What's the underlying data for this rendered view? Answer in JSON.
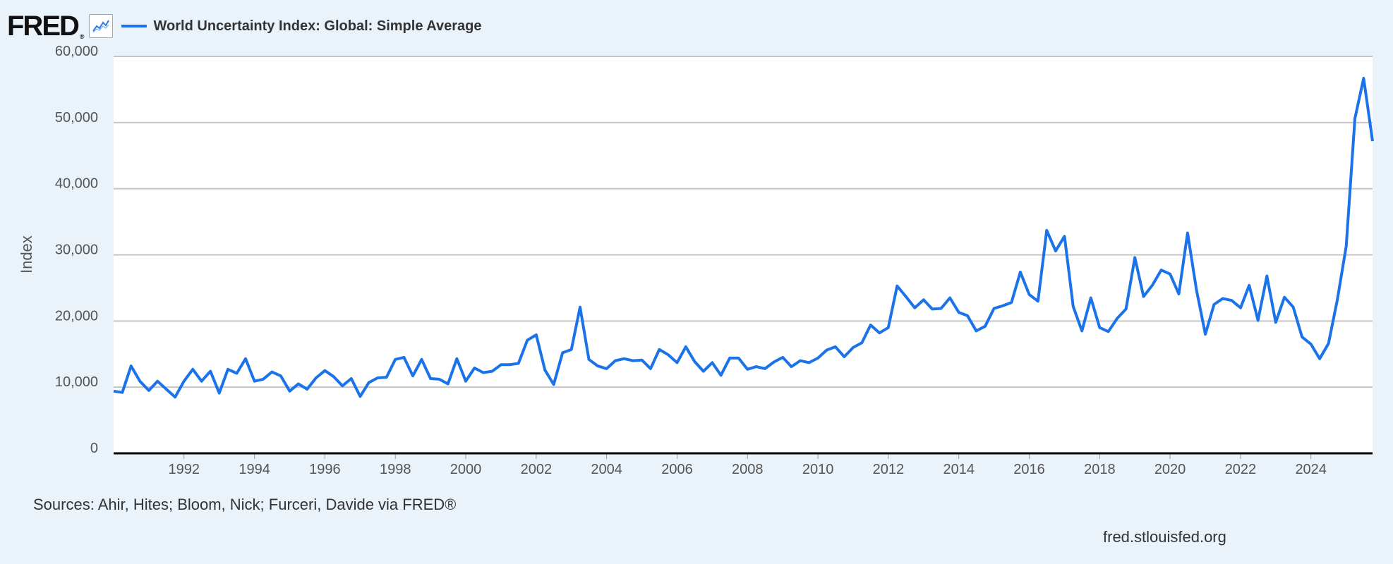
{
  "header": {
    "logo_text": "FRED",
    "logo_reg": "®",
    "icon": "line-chart-icon"
  },
  "chart_data": {
    "type": "line",
    "title": "",
    "legend": [
      "World Uncertainty Index: Global: Simple Average"
    ],
    "legend_placement": "top-left",
    "xlabel": "",
    "ylabel": "Index",
    "ylim": [
      0,
      60000
    ],
    "yticks": [
      0,
      10000,
      20000,
      30000,
      40000,
      50000,
      60000
    ],
    "ytick_labels": [
      "0",
      "10,000",
      "20,000",
      "30,000",
      "40,000",
      "50,000",
      "60,000"
    ],
    "xlim": [
      "1990-01-01",
      "2025-10-01"
    ],
    "xtick_labels": [
      "1992",
      "1994",
      "1996",
      "1998",
      "2000",
      "2002",
      "2004",
      "2006",
      "2008",
      "2010",
      "2012",
      "2014",
      "2016",
      "2018",
      "2020",
      "2022",
      "2024"
    ],
    "grid": "horizontal",
    "color": "#1a73e8",
    "frequency": "quarterly",
    "series": [
      {
        "name": "World Uncertainty Index: Global: Simple Average",
        "x": [
          "1990-01-01",
          "1990-04-01",
          "1990-07-01",
          "1990-10-01",
          "1991-01-01",
          "1991-04-01",
          "1991-07-01",
          "1991-10-01",
          "1992-01-01",
          "1992-04-01",
          "1992-07-01",
          "1992-10-01",
          "1993-01-01",
          "1993-04-01",
          "1993-07-01",
          "1993-10-01",
          "1994-01-01",
          "1994-04-01",
          "1994-07-01",
          "1994-10-01",
          "1995-01-01",
          "1995-04-01",
          "1995-07-01",
          "1995-10-01",
          "1996-01-01",
          "1996-04-01",
          "1996-07-01",
          "1996-10-01",
          "1997-01-01",
          "1997-04-01",
          "1997-07-01",
          "1997-10-01",
          "1998-01-01",
          "1998-04-01",
          "1998-07-01",
          "1998-10-01",
          "1999-01-01",
          "1999-04-01",
          "1999-07-01",
          "1999-10-01",
          "2000-01-01",
          "2000-04-01",
          "2000-07-01",
          "2000-10-01",
          "2001-01-01",
          "2001-04-01",
          "2001-07-01",
          "2001-10-01",
          "2002-01-01",
          "2002-04-01",
          "2002-07-01",
          "2002-10-01",
          "2003-01-01",
          "2003-04-01",
          "2003-07-01",
          "2003-10-01",
          "2004-01-01",
          "2004-04-01",
          "2004-07-01",
          "2004-10-01",
          "2005-01-01",
          "2005-04-01",
          "2005-07-01",
          "2005-10-01",
          "2006-01-01",
          "2006-04-01",
          "2006-07-01",
          "2006-10-01",
          "2007-01-01",
          "2007-04-01",
          "2007-07-01",
          "2007-10-01",
          "2008-01-01",
          "2008-04-01",
          "2008-07-01",
          "2008-10-01",
          "2009-01-01",
          "2009-04-01",
          "2009-07-01",
          "2009-10-01",
          "2010-01-01",
          "2010-04-01",
          "2010-07-01",
          "2010-10-01",
          "2011-01-01",
          "2011-04-01",
          "2011-07-01",
          "2011-10-01",
          "2012-01-01",
          "2012-04-01",
          "2012-07-01",
          "2012-10-01",
          "2013-01-01",
          "2013-04-01",
          "2013-07-01",
          "2013-10-01",
          "2014-01-01",
          "2014-04-01",
          "2014-07-01",
          "2014-10-01",
          "2015-01-01",
          "2015-04-01",
          "2015-07-01",
          "2015-10-01",
          "2016-01-01",
          "2016-04-01",
          "2016-07-01",
          "2016-10-01",
          "2017-01-01",
          "2017-04-01",
          "2017-07-01",
          "2017-10-01",
          "2018-01-01",
          "2018-04-01",
          "2018-07-01",
          "2018-10-01",
          "2019-01-01",
          "2019-04-01",
          "2019-07-01",
          "2019-10-01",
          "2020-01-01",
          "2020-04-01",
          "2020-07-01",
          "2020-10-01",
          "2021-01-01",
          "2021-04-01",
          "2021-07-01",
          "2021-10-01",
          "2022-01-01",
          "2022-04-01",
          "2022-07-01",
          "2022-10-01",
          "2023-01-01",
          "2023-04-01",
          "2023-07-01",
          "2023-10-01",
          "2024-01-01",
          "2024-04-01",
          "2024-07-01",
          "2024-10-01",
          "2025-01-01",
          "2025-04-01",
          "2025-07-01",
          "2025-10-01"
        ],
        "values": [
          9400,
          9200,
          13200,
          10900,
          9500,
          10900,
          9700,
          8500,
          10900,
          12700,
          10900,
          12400,
          9100,
          12700,
          12100,
          14300,
          10900,
          11200,
          12300,
          11700,
          9400,
          10500,
          9700,
          11400,
          12500,
          11600,
          10200,
          11300,
          8600,
          10700,
          11400,
          11500,
          14200,
          14500,
          11700,
          14200,
          11300,
          11200,
          10500,
          14300,
          10900,
          12900,
          12200,
          12400,
          13400,
          13400,
          13600,
          17100,
          17900,
          12600,
          10400,
          15200,
          15700,
          22100,
          14200,
          13200,
          12800,
          14000,
          14300,
          14000,
          14100,
          12800,
          15700,
          14900,
          13700,
          16100,
          13900,
          12400,
          13700,
          11800,
          14400,
          14400,
          12700,
          13100,
          12800,
          13800,
          14500,
          13100,
          14000,
          13700,
          14400,
          15600,
          16100,
          14600,
          16000,
          16700,
          19400,
          18200,
          19000,
          25300,
          23700,
          22000,
          23200,
          21800,
          21900,
          23500,
          21300,
          20800,
          18500,
          19200,
          21900,
          22300,
          22800,
          27400,
          24000,
          23000,
          33700,
          30600,
          32800,
          22200,
          18500,
          23500,
          19000,
          18400,
          20400,
          21800,
          29600,
          23700,
          25400,
          27700,
          27100,
          24100,
          33300,
          24700,
          18000,
          22500,
          23400,
          23100,
          22000,
          25400,
          20100,
          26800,
          19800,
          23600,
          22100,
          17600,
          16500,
          14300,
          16600,
          23200,
          31300,
          50600,
          56700,
          47200
        ]
      }
    ]
  },
  "footer": {
    "sources": "Sources: Ahir, Hites; Bloom, Nick; Furceri, Davide via FRED®",
    "site": "fred.stlouisfed.org"
  }
}
